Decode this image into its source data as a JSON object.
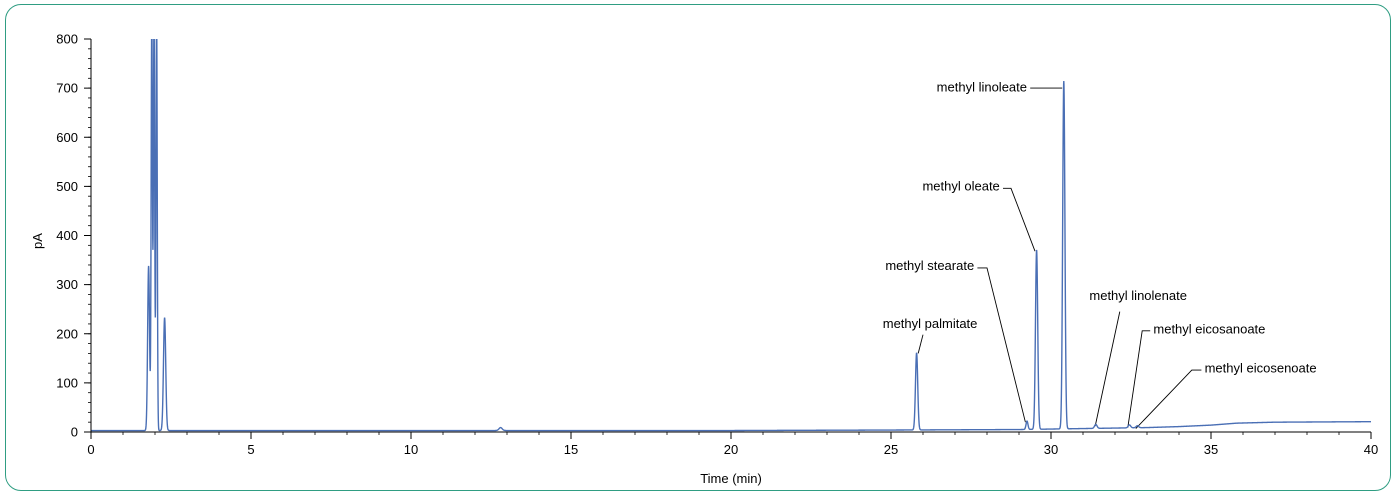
{
  "chart_data": {
    "type": "line",
    "xlabel": "Time (min)",
    "ylabel": "pA",
    "xlim": [
      0,
      40
    ],
    "ylim": [
      0,
      800
    ],
    "x_ticks": [
      0,
      5,
      10,
      15,
      20,
      25,
      30,
      35,
      40
    ],
    "y_ticks": [
      0,
      100,
      200,
      300,
      400,
      500,
      600,
      700,
      800
    ],
    "grid": false,
    "line_color": "#4a6fb5",
    "frame_color": "#2f9d82",
    "baseline": [
      [
        0,
        3
      ],
      [
        5,
        3
      ],
      [
        10,
        3
      ],
      [
        15,
        3
      ],
      [
        20,
        3
      ],
      [
        25,
        4
      ],
      [
        29,
        5
      ],
      [
        31,
        7
      ],
      [
        33,
        9
      ],
      [
        34,
        11
      ],
      [
        35,
        14
      ],
      [
        35.8,
        18
      ],
      [
        37,
        20
      ],
      [
        40,
        21
      ]
    ],
    "peaks": [
      {
        "time": 1.8,
        "height": 335,
        "width": 0.03
      },
      {
        "time": 1.9,
        "height": 850,
        "width": 0.02
      },
      {
        "time": 1.97,
        "height": 850,
        "width": 0.02
      },
      {
        "time": 2.05,
        "height": 850,
        "width": 0.02
      },
      {
        "time": 2.3,
        "height": 230,
        "width": 0.035
      },
      {
        "time": 12.8,
        "height": 6,
        "width": 0.05
      },
      {
        "time": 25.8,
        "height": 157,
        "width": 0.035
      },
      {
        "time": 29.25,
        "height": 17,
        "width": 0.03
      },
      {
        "time": 29.55,
        "height": 365,
        "width": 0.035
      },
      {
        "time": 30.4,
        "height": 708,
        "width": 0.035
      },
      {
        "time": 31.4,
        "height": 8,
        "width": 0.04
      },
      {
        "time": 32.45,
        "height": 6,
        "width": 0.04
      },
      {
        "time": 32.7,
        "height": 4,
        "width": 0.04
      }
    ],
    "annotations": [
      {
        "label": "methyl palmitate",
        "label_x": 27.7,
        "label_y": 212,
        "anchor": "end",
        "line": [
          [
            26.0,
            198
          ],
          [
            25.85,
            160
          ]
        ]
      },
      {
        "label": "methyl stearate",
        "label_x": 27.6,
        "label_y": 330,
        "anchor": "end",
        "line": [
          [
            27.7,
            334
          ],
          [
            28.0,
            334
          ],
          [
            29.2,
            20
          ]
        ]
      },
      {
        "label": "methyl oleate",
        "label_x": 28.4,
        "label_y": 492,
        "anchor": "end",
        "line": [
          [
            28.5,
            496
          ],
          [
            28.75,
            496
          ],
          [
            29.5,
            368
          ]
        ]
      },
      {
        "label": "methyl linoleate",
        "label_x": 29.25,
        "label_y": 693,
        "anchor": "end",
        "line": [
          [
            29.35,
            700
          ],
          [
            30.35,
            700
          ],
          [
            30.35,
            700
          ]
        ]
      },
      {
        "label": "methyl linolenate",
        "label_x": 31.2,
        "label_y": 269,
        "anchor": "start",
        "line": [
          [
            32.15,
            245
          ],
          [
            31.38,
            12
          ]
        ]
      },
      {
        "label": "methyl eicosanoate",
        "label_x": 33.2,
        "label_y": 201,
        "anchor": "start",
        "line": [
          [
            33.1,
            206
          ],
          [
            32.85,
            206
          ],
          [
            32.4,
            9
          ]
        ]
      },
      {
        "label": "methyl eicosenoate",
        "label_x": 34.8,
        "label_y": 121,
        "anchor": "start",
        "line": [
          [
            34.7,
            126
          ],
          [
            34.4,
            126
          ],
          [
            32.65,
            7
          ]
        ]
      }
    ]
  }
}
